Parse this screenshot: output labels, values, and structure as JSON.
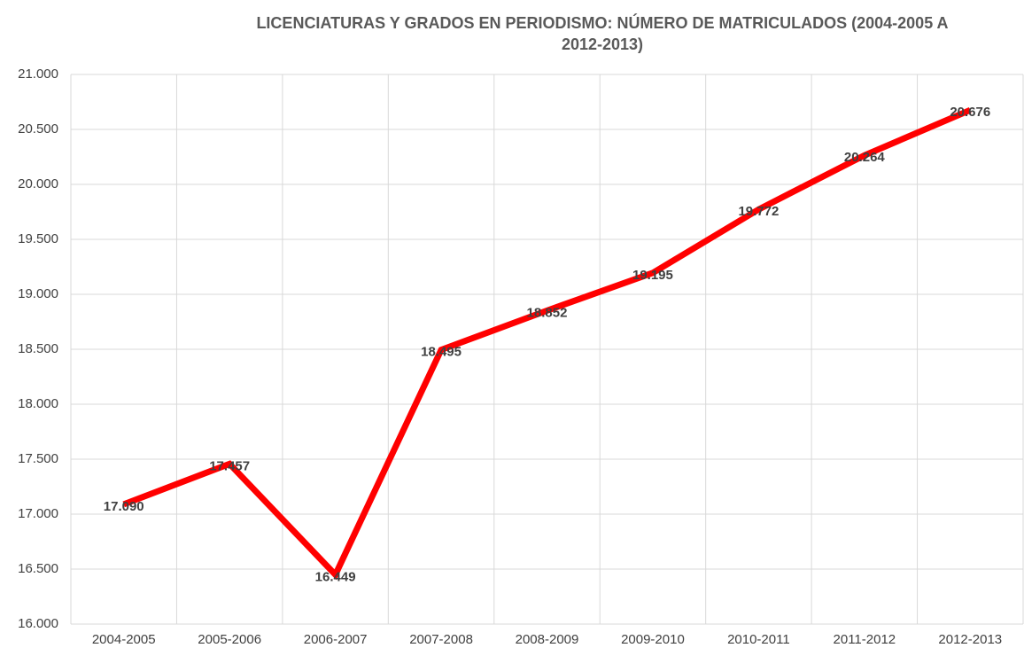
{
  "chart_data": {
    "type": "line",
    "title": "LICENCIATURAS Y GRADOS EN PERIODISMO: NÚMERO DE MATRICULADOS (2004-2005 A 2012-2013)",
    "categories": [
      "2004-2005",
      "2005-2006",
      "2006-2007",
      "2007-2008",
      "2008-2009",
      "2009-2010",
      "2010-2011",
      "2011-2012",
      "2012-2013"
    ],
    "series": [
      {
        "color": "#ff0000",
        "values": [
          17090,
          17457,
          16449,
          18495,
          18852,
          19195,
          19772,
          20264,
          20676
        ],
        "value_labels": [
          "17.090",
          "17.457",
          "16.449",
          "18.495",
          "18.852",
          "19.195",
          "19.772",
          "20.264",
          "20.676"
        ]
      }
    ],
    "ylim": [
      16000,
      21000
    ],
    "yticks": [
      {
        "value": 16000,
        "label": "16.000"
      },
      {
        "value": 16500,
        "label": "16.500"
      },
      {
        "value": 17000,
        "label": "17.000"
      },
      {
        "value": 17500,
        "label": "17.500"
      },
      {
        "value": 18000,
        "label": "18.000"
      },
      {
        "value": 18500,
        "label": "18.500"
      },
      {
        "value": 19000,
        "label": "19.000"
      },
      {
        "value": 19500,
        "label": "19.500"
      },
      {
        "value": 20000,
        "label": "20.000"
      },
      {
        "value": 20500,
        "label": "20.500"
      },
      {
        "value": 21000,
        "label": "21.000"
      }
    ],
    "grid": true
  }
}
